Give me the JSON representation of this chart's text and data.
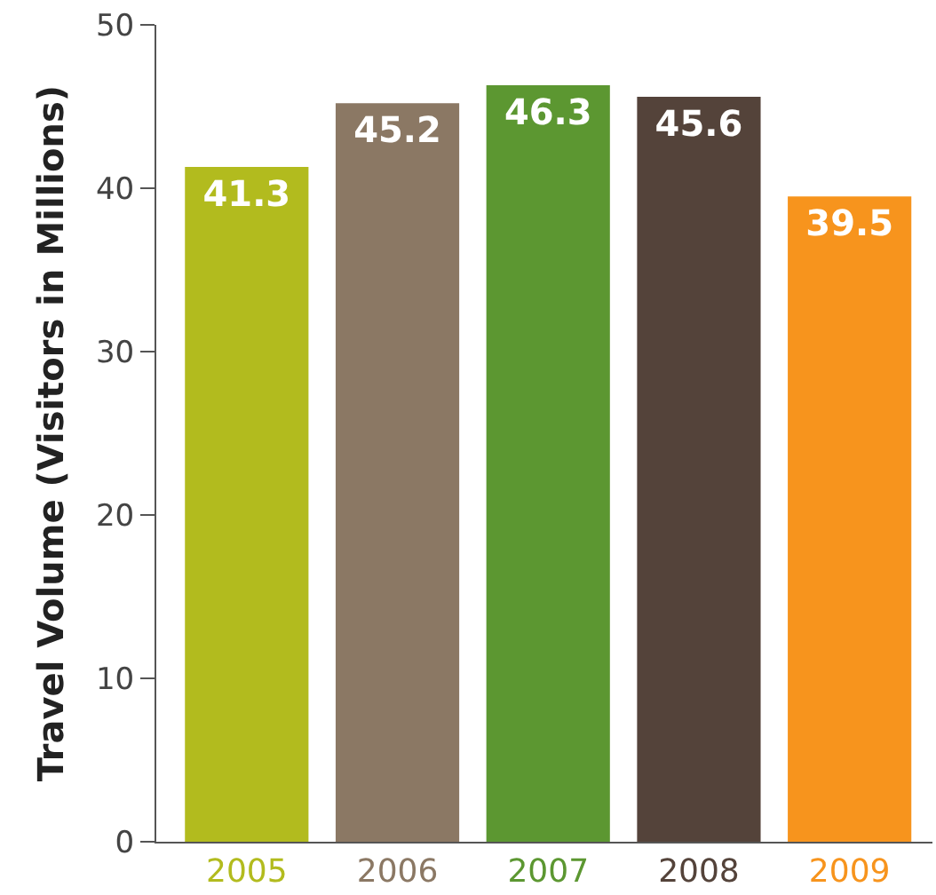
{
  "chart_data": {
    "type": "bar",
    "ylabel": "Travel Volume (Visitors in Millions)",
    "categories": [
      "2005",
      "2006",
      "2007",
      "2008",
      "2009"
    ],
    "values": [
      41.3,
      45.2,
      46.3,
      45.6,
      39.5
    ],
    "colors": [
      "#b2bb1e",
      "#8b7864",
      "#5c9731",
      "#54433a",
      "#f7941d"
    ],
    "ylim": [
      0,
      50
    ],
    "yticks": [
      0,
      10,
      20,
      30,
      40,
      50
    ],
    "data_labels": true
  }
}
